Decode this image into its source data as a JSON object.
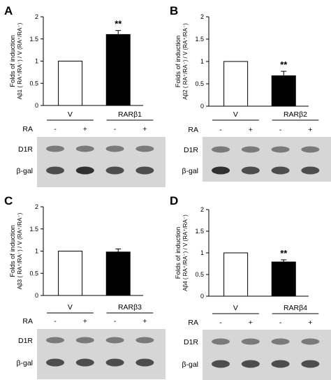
{
  "chart_data": [
    {
      "panel_label": "A",
      "type": "bar",
      "ylabel": "Folds of induction",
      "ylabel_sub": "Aβ1 ( RA⁺/RA⁻) / V (RA⁺/RA⁻)",
      "ylim": [
        0,
        2
      ],
      "yticks": [
        "0",
        "0.5",
        "1",
        "1.5",
        "2"
      ],
      "categories": [
        "V",
        "RARβ1"
      ],
      "values": [
        1.0,
        1.6
      ],
      "errors": [
        0,
        0.09
      ],
      "significance": [
        "",
        "**"
      ],
      "ra_row_label": "RA",
      "ra_signs": [
        "-",
        "+",
        "-",
        "+"
      ],
      "blot_rows": [
        "D1R",
        "β-gal"
      ],
      "colors": [
        "#ffffff",
        "#000000"
      ]
    },
    {
      "panel_label": "B",
      "type": "bar",
      "ylabel": "Folds of induction",
      "ylabel_sub": "Aβ2 ( RA⁺/RA⁻) / V (RA⁺/RA⁻)",
      "ylim": [
        0,
        2
      ],
      "yticks": [
        "0",
        "0.5",
        "1",
        "1.5",
        "2"
      ],
      "categories": [
        "V",
        "RARβ2"
      ],
      "values": [
        1.0,
        0.68
      ],
      "errors": [
        0,
        0.1
      ],
      "significance": [
        "",
        "**"
      ],
      "ra_row_label": "RA",
      "ra_signs": [
        "-",
        "+",
        "-",
        "+"
      ],
      "blot_rows": [
        "D1R",
        "β-gal"
      ],
      "colors": [
        "#ffffff",
        "#000000"
      ]
    },
    {
      "panel_label": "C",
      "type": "bar",
      "ylabel": "Folds of induction",
      "ylabel_sub": "Aβ3 ( RA⁺/RA⁻) / V (RA⁺/RA⁻)",
      "ylim": [
        0,
        2
      ],
      "yticks": [
        "0",
        "0.5",
        "1",
        "1.5",
        "2"
      ],
      "categories": [
        "V",
        "RARβ3"
      ],
      "values": [
        1.0,
        0.98
      ],
      "errors": [
        0,
        0.07
      ],
      "significance": [
        "",
        ""
      ],
      "ra_row_label": "RA",
      "ra_signs": [
        "-",
        "+",
        "-",
        "+"
      ],
      "blot_rows": [
        "D1R",
        "β-gal"
      ],
      "colors": [
        "#ffffff",
        "#000000"
      ]
    },
    {
      "panel_label": "D",
      "type": "bar",
      "ylabel": "Folds of induction",
      "ylabel_sub": "Aβ4 ( RA⁺/RA⁻) / V (RA⁺/RA⁻)",
      "ylim": [
        0,
        2
      ],
      "yticks": [
        "0",
        "0.5",
        "1",
        "1.5",
        "2"
      ],
      "categories": [
        "V",
        "RARβ4"
      ],
      "values": [
        1.0,
        0.79
      ],
      "errors": [
        0,
        0.05
      ],
      "significance": [
        "",
        "**"
      ],
      "ra_row_label": "RA",
      "ra_signs": [
        "-",
        "+",
        "-",
        "+"
      ],
      "blot_rows": [
        "D1R",
        "β-gal"
      ],
      "colors": [
        "#ffffff",
        "#000000"
      ]
    }
  ]
}
